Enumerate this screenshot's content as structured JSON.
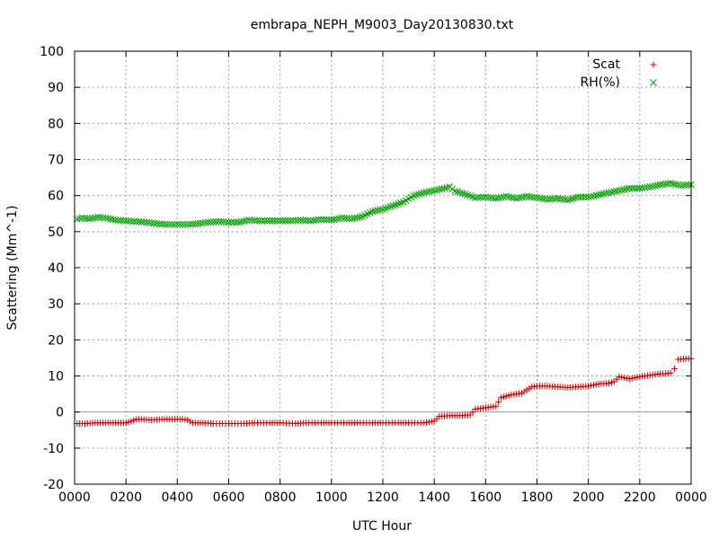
{
  "chart_data": {
    "type": "scatter",
    "title": "embrapa_NEPH_M9003_Day20130830.txt",
    "xlabel": "UTC Hour",
    "ylabel": "Scattering (Mm^-1)",
    "xlim": [
      0,
      24
    ],
    "ylim": [
      -20,
      100
    ],
    "x_ticks": [
      "0000",
      "0200",
      "0400",
      "0600",
      "0800",
      "1000",
      "1200",
      "1400",
      "1600",
      "1800",
      "2000",
      "2200",
      "0000"
    ],
    "y_ticks": [
      "-20",
      "-10",
      "0",
      "10",
      "20",
      "30",
      "40",
      "50",
      "60",
      "70",
      "80",
      "90",
      "100"
    ],
    "grid": true,
    "zero_line": true,
    "legend_position": "top-right",
    "series": [
      {
        "name": "Scat",
        "marker": "plus",
        "color": "#cc0000",
        "points": [
          [
            0.1,
            -3.2
          ],
          [
            0.4,
            -3.2
          ],
          [
            0.8,
            -3.0
          ],
          [
            1.2,
            -3.0
          ],
          [
            1.6,
            -3.0
          ],
          [
            2.0,
            -3.0
          ],
          [
            2.2,
            -2.6
          ],
          [
            2.4,
            -2.0
          ],
          [
            2.6,
            -2.0
          ],
          [
            3.0,
            -2.2
          ],
          [
            3.4,
            -2.0
          ],
          [
            3.8,
            -2.0
          ],
          [
            4.2,
            -2.0
          ],
          [
            4.4,
            -2.2
          ],
          [
            4.6,
            -3.0
          ],
          [
            5.0,
            -3.0
          ],
          [
            5.4,
            -3.2
          ],
          [
            6.0,
            -3.2
          ],
          [
            6.6,
            -3.2
          ],
          [
            7.0,
            -3.0
          ],
          [
            7.6,
            -3.0
          ],
          [
            8.0,
            -3.0
          ],
          [
            8.6,
            -3.2
          ],
          [
            9.0,
            -3.0
          ],
          [
            9.6,
            -3.0
          ],
          [
            10.0,
            -3.0
          ],
          [
            10.6,
            -3.0
          ],
          [
            11.0,
            -3.0
          ],
          [
            11.6,
            -3.0
          ],
          [
            12.0,
            -3.0
          ],
          [
            12.6,
            -3.0
          ],
          [
            13.0,
            -3.0
          ],
          [
            13.6,
            -3.0
          ],
          [
            14.0,
            -2.5
          ],
          [
            14.2,
            -1.2
          ],
          [
            14.6,
            -1.0
          ],
          [
            15.0,
            -1.0
          ],
          [
            15.4,
            -0.8
          ],
          [
            15.6,
            0.8
          ],
          [
            16.0,
            1.2
          ],
          [
            16.4,
            1.6
          ],
          [
            16.6,
            4.0
          ],
          [
            17.0,
            4.8
          ],
          [
            17.4,
            5.2
          ],
          [
            17.8,
            7.0
          ],
          [
            18.0,
            7.2
          ],
          [
            18.4,
            7.2
          ],
          [
            18.8,
            7.0
          ],
          [
            19.2,
            6.8
          ],
          [
            19.6,
            7.0
          ],
          [
            20.0,
            7.2
          ],
          [
            20.4,
            7.8
          ],
          [
            20.8,
            8.0
          ],
          [
            21.0,
            8.4
          ],
          [
            21.2,
            9.8
          ],
          [
            21.6,
            9.2
          ],
          [
            22.0,
            9.8
          ],
          [
            22.4,
            10.2
          ],
          [
            22.8,
            10.6
          ],
          [
            23.0,
            10.6
          ],
          [
            23.2,
            10.8
          ],
          [
            23.35,
            12.0
          ],
          [
            23.5,
            14.6
          ],
          [
            23.8,
            14.8
          ],
          [
            24.0,
            14.8
          ]
        ]
      },
      {
        "name": "RH(%)",
        "marker": "cross",
        "color": "#00a000",
        "points": [
          [
            0.1,
            53.5
          ],
          [
            0.3,
            53.8
          ],
          [
            0.6,
            53.6
          ],
          [
            0.9,
            54.0
          ],
          [
            1.2,
            53.8
          ],
          [
            1.6,
            53.2
          ],
          [
            2.0,
            53.0
          ],
          [
            2.4,
            52.8
          ],
          [
            2.8,
            52.6
          ],
          [
            3.2,
            52.2
          ],
          [
            3.6,
            52.0
          ],
          [
            4.0,
            52.0
          ],
          [
            4.4,
            52.0
          ],
          [
            4.8,
            52.2
          ],
          [
            5.2,
            52.6
          ],
          [
            5.6,
            52.8
          ],
          [
            6.0,
            52.6
          ],
          [
            6.4,
            52.6
          ],
          [
            6.8,
            53.2
          ],
          [
            7.2,
            53.0
          ],
          [
            7.6,
            53.0
          ],
          [
            8.0,
            53.0
          ],
          [
            8.4,
            53.0
          ],
          [
            8.8,
            53.2
          ],
          [
            9.2,
            53.0
          ],
          [
            9.6,
            53.4
          ],
          [
            10.0,
            53.2
          ],
          [
            10.4,
            53.8
          ],
          [
            10.8,
            53.6
          ],
          [
            11.2,
            54.2
          ],
          [
            11.6,
            55.6
          ],
          [
            12.0,
            56.2
          ],
          [
            12.4,
            57.2
          ],
          [
            12.8,
            58.2
          ],
          [
            13.2,
            60.0
          ],
          [
            13.6,
            60.8
          ],
          [
            14.0,
            61.4
          ],
          [
            14.4,
            62.0
          ],
          [
            14.6,
            62.4
          ],
          [
            14.8,
            61.2
          ],
          [
            15.2,
            60.4
          ],
          [
            15.6,
            59.4
          ],
          [
            16.0,
            59.6
          ],
          [
            16.4,
            59.2
          ],
          [
            16.8,
            59.8
          ],
          [
            17.2,
            59.2
          ],
          [
            17.6,
            59.8
          ],
          [
            18.0,
            59.4
          ],
          [
            18.4,
            59.0
          ],
          [
            18.8,
            59.2
          ],
          [
            19.2,
            58.8
          ],
          [
            19.6,
            59.6
          ],
          [
            20.0,
            59.6
          ],
          [
            20.4,
            60.2
          ],
          [
            20.8,
            60.8
          ],
          [
            21.2,
            61.4
          ],
          [
            21.6,
            62.0
          ],
          [
            22.0,
            62.0
          ],
          [
            22.4,
            62.4
          ],
          [
            22.8,
            63.0
          ],
          [
            23.2,
            63.4
          ],
          [
            23.6,
            62.8
          ],
          [
            24.0,
            63.0
          ]
        ]
      }
    ]
  }
}
